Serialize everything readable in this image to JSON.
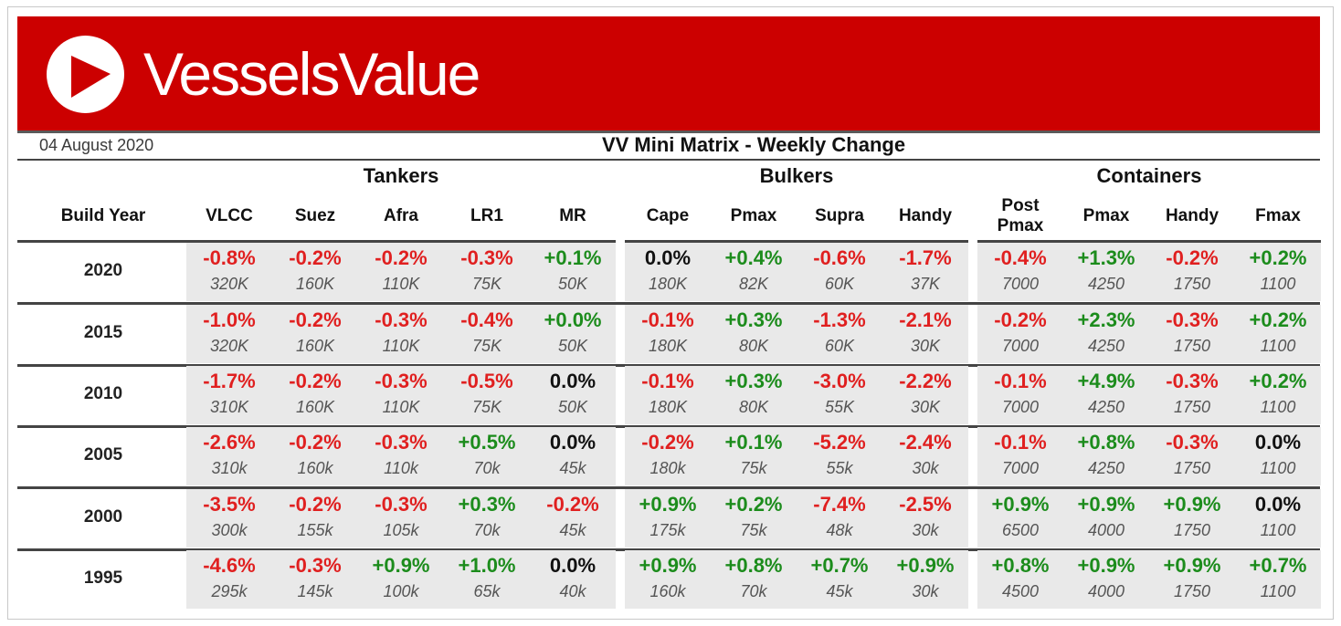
{
  "brand": "VesselsValue",
  "date": "04 August 2020",
  "title": "VV Mini Matrix - Weekly Change",
  "colors": {
    "banner": "#cc0000",
    "negative": "#e02020",
    "positive": "#1c8c1c",
    "zero": "#111111"
  },
  "year_header": "Build Year",
  "groups": [
    {
      "name": "Tankers",
      "columns": [
        "VLCC",
        "Suez",
        "Afra",
        "LR1",
        "MR"
      ]
    },
    {
      "name": "Bulkers",
      "columns": [
        "Cape",
        "Pmax",
        "Supra",
        "Handy"
      ]
    },
    {
      "name": "Containers",
      "columns": [
        "Post Pmax",
        "Pmax",
        "Handy",
        "Fmax"
      ]
    }
  ],
  "rows": [
    {
      "year": "2020",
      "changes": [
        "-0.8%",
        "-0.2%",
        "-0.2%",
        "-0.3%",
        "+0.1%",
        "0.0%",
        "+0.4%",
        "-0.6%",
        "-1.7%",
        "-0.4%",
        "+1.3%",
        "-0.2%",
        "+0.2%"
      ],
      "sizes": [
        "320K",
        "160K",
        "110K",
        "75K",
        "50K",
        "180K",
        "82K",
        "60K",
        "37K",
        "7000",
        "4250",
        "1750",
        "1100"
      ]
    },
    {
      "year": "2015",
      "changes": [
        "-1.0%",
        "-0.2%",
        "-0.3%",
        "-0.4%",
        "+0.0%",
        "-0.1%",
        "+0.3%",
        "-1.3%",
        "-2.1%",
        "-0.2%",
        "+2.3%",
        "-0.3%",
        "+0.2%"
      ],
      "sizes": [
        "320K",
        "160K",
        "110K",
        "75K",
        "50K",
        "180K",
        "80K",
        "60K",
        "30K",
        "7000",
        "4250",
        "1750",
        "1100"
      ]
    },
    {
      "year": "2010",
      "changes": [
        "-1.7%",
        "-0.2%",
        "-0.3%",
        "-0.5%",
        "0.0%",
        "-0.1%",
        "+0.3%",
        "-3.0%",
        "-2.2%",
        "-0.1%",
        "+4.9%",
        "-0.3%",
        "+0.2%"
      ],
      "sizes": [
        "310K",
        "160K",
        "110K",
        "75K",
        "50K",
        "180K",
        "80K",
        "55K",
        "30K",
        "7000",
        "4250",
        "1750",
        "1100"
      ]
    },
    {
      "year": "2005",
      "changes": [
        "-2.6%",
        "-0.2%",
        "-0.3%",
        "+0.5%",
        "0.0%",
        "-0.2%",
        "+0.1%",
        "-5.2%",
        "-2.4%",
        "-0.1%",
        "+0.8%",
        "-0.3%",
        "0.0%"
      ],
      "sizes": [
        "310k",
        "160k",
        "110k",
        "70k",
        "45k",
        "180k",
        "75k",
        "55k",
        "30k",
        "7000",
        "4250",
        "1750",
        "1100"
      ]
    },
    {
      "year": "2000",
      "changes": [
        "-3.5%",
        "-0.2%",
        "-0.3%",
        "+0.3%",
        "-0.2%",
        "+0.9%",
        "+0.2%",
        "-7.4%",
        "-2.5%",
        "+0.9%",
        "+0.9%",
        "+0.9%",
        "0.0%"
      ],
      "sizes": [
        "300k",
        "155k",
        "105k",
        "70k",
        "45k",
        "175k",
        "75k",
        "48k",
        "30k",
        "6500",
        "4000",
        "1750",
        "1100"
      ]
    },
    {
      "year": "1995",
      "changes": [
        "-4.6%",
        "-0.3%",
        "+0.9%",
        "+1.0%",
        "0.0%",
        "+0.9%",
        "+0.8%",
        "+0.7%",
        "+0.9%",
        "+0.8%",
        "+0.9%",
        "+0.9%",
        "+0.7%"
      ],
      "sizes": [
        "295k",
        "145k",
        "100k",
        "65k",
        "40k",
        "160k",
        "70k",
        "45k",
        "30k",
        "4500",
        "4000",
        "1750",
        "1100"
      ]
    }
  ]
}
